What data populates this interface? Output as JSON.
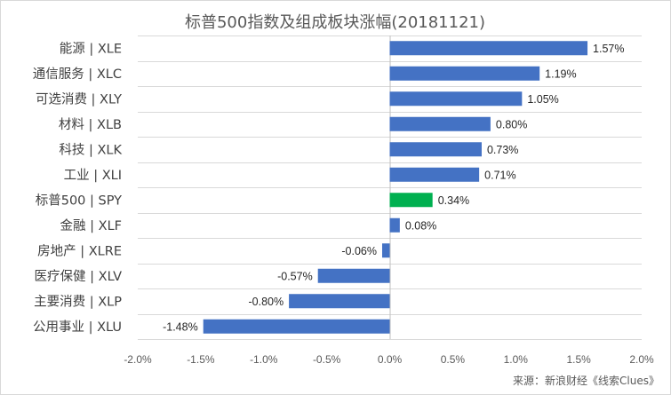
{
  "chart_data": {
    "type": "bar",
    "orientation": "horizontal",
    "title": "标普500指数及组成板块涨幅(20181121)",
    "categories": [
      "能源 | XLE",
      "通信服务 | XLC",
      "可选消费 | XLY",
      "材料 | XLB",
      "科技 | XLK",
      "工业 | XLI",
      "标普500 | SPY",
      "金融 | XLF",
      "房地产 | XLRE",
      "医疗保健 | XLV",
      "主要消费 | XLP",
      "公用事业 | XLU"
    ],
    "values": [
      1.57,
      1.19,
      1.05,
      0.8,
      0.73,
      0.71,
      0.34,
      0.08,
      -0.06,
      -0.57,
      -0.8,
      -1.48
    ],
    "value_labels": [
      "1.57%",
      "1.19%",
      "1.05%",
      "0.80%",
      "0.73%",
      "0.71%",
      "0.34%",
      "0.08%",
      "-0.06%",
      "-0.57%",
      "-0.80%",
      "-1.48%"
    ],
    "highlight_category": "标普500 | SPY",
    "xlim": [
      -2.0,
      2.0
    ],
    "x_ticks": [
      -2.0,
      -1.5,
      -1.0,
      -0.5,
      0.0,
      0.5,
      1.0,
      1.5,
      2.0
    ],
    "x_tick_labels": [
      "-2.0%",
      "-1.5%",
      "-1.0%",
      "-0.5%",
      "0.0%",
      "0.5%",
      "1.0%",
      "1.5%",
      "2.0%"
    ],
    "xlabel": "",
    "ylabel": "",
    "grid": "horizontal",
    "legend": "none",
    "colors": {
      "bar": "#4472c4",
      "highlight": "#00b050",
      "grid": "#d9d9d9",
      "text": "#404040"
    }
  },
  "source_note": "来源：新浪财经《线索Clues》"
}
